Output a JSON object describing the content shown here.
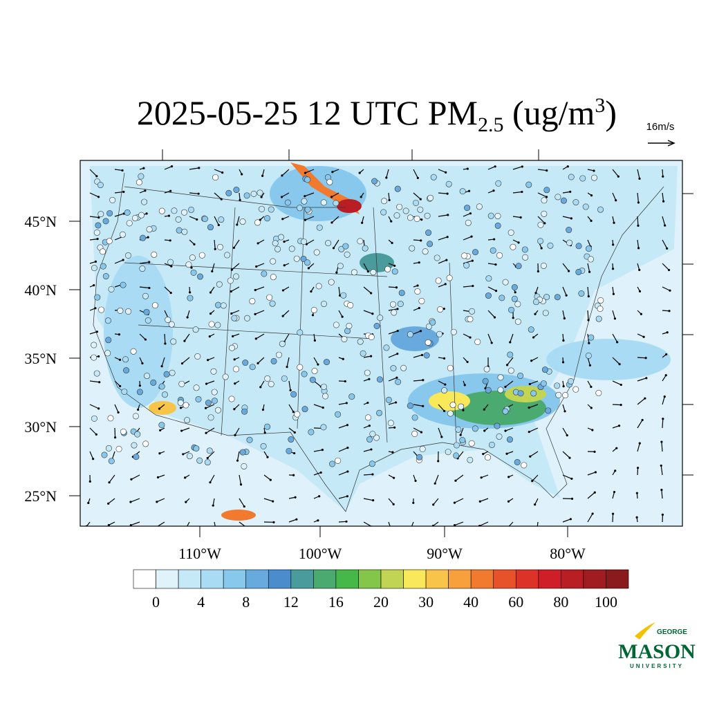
{
  "header": {
    "title_main": "2025-05-25 12 UTC PM",
    "title_sub": "2.5",
    "title_unit": " (ug/m",
    "title_sup": "3",
    "title_close": ")"
  },
  "wind_scale": "16m/s",
  "map": {
    "lat_labels": [
      "45°N",
      "40°N",
      "35°N",
      "30°N",
      "25°N"
    ],
    "lon_labels": [
      "110°W",
      "100°W",
      "90°W",
      "80°W"
    ]
  },
  "colorbar": {
    "ticks": [
      0,
      4,
      8,
      12,
      16,
      20,
      30,
      40,
      60,
      80,
      100
    ],
    "colors": [
      "#ffffff",
      "#e0f3fb",
      "#c6e9f8",
      "#a9dcf4",
      "#88c8ec",
      "#68aadd",
      "#4a8ccc",
      "#4a9c9c",
      "#4aaa70",
      "#46b84a",
      "#84c64a",
      "#c2d454",
      "#f8e85a",
      "#f8c44a",
      "#f8a03c",
      "#f27a2e",
      "#e8522a",
      "#dc3228",
      "#d01e28",
      "#b81e24",
      "#a01c20",
      "#8a1a1c"
    ]
  },
  "logo": {
    "top": "GEORGE",
    "main": "MASON",
    "bottom": "UNIVERSITY"
  }
}
